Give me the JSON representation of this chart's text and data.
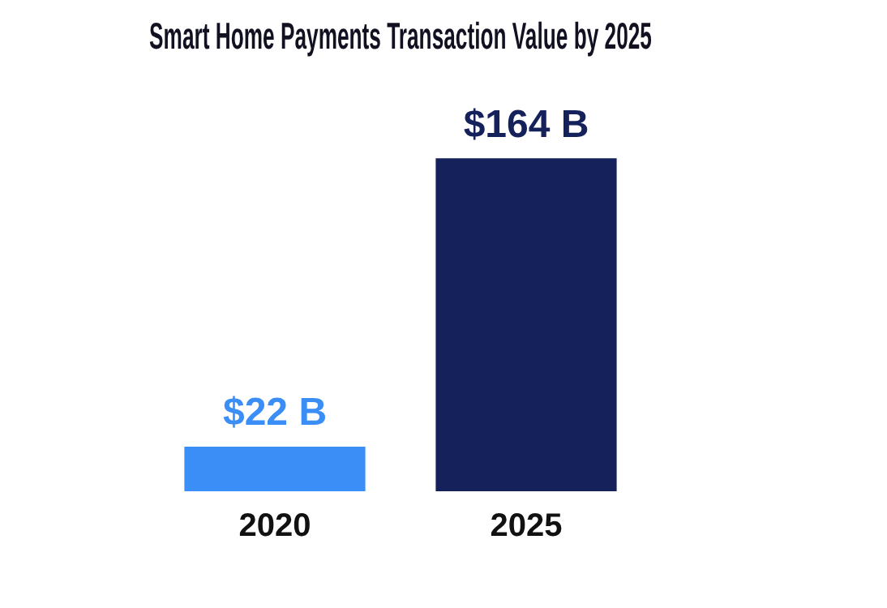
{
  "chart_data": {
    "type": "bar",
    "title": "Smart Home Payments Transaction Value by 2025",
    "categories": [
      "2020",
      "2025"
    ],
    "values": [
      22,
      164
    ],
    "colors": [
      "#3a8ef6",
      "#15215a"
    ],
    "value_labels": [
      "$22 B",
      "$164 B"
    ],
    "grid": false,
    "legend": false
  }
}
